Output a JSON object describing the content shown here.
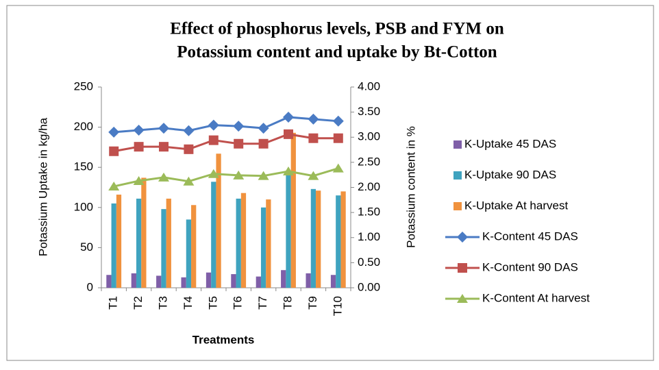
{
  "chart_data": {
    "type": "bar-line",
    "title": [
      "Effect of phosphorus levels, PSB and FYM on",
      "Potassium content and uptake by Bt-Cotton"
    ],
    "xlabel": "Treatments",
    "ylabel": "Potassium Uptake in kg/ha",
    "y2label": "Potassium content in %",
    "categories": [
      "T1",
      "T2",
      "T3",
      "T4",
      "T5",
      "T6",
      "T7",
      "T8",
      "T9",
      "T10"
    ],
    "ylim": [
      0,
      250
    ],
    "yticks": [
      0,
      50,
      100,
      150,
      200,
      250
    ],
    "y2lim": [
      0,
      4
    ],
    "y2ticks": [
      {
        "value": 0,
        "label": "0.00"
      },
      {
        "value": 0.5,
        "label": "0.50"
      },
      {
        "value": 1,
        "label": "1.00"
      },
      {
        "value": 1.5,
        "label": "1.50"
      },
      {
        "value": 2,
        "label": "2.00"
      },
      {
        "value": 2.5,
        "label": "2.50"
      },
      {
        "value": 3,
        "label": "3.00"
      },
      {
        "value": 3.5,
        "label": "3.50"
      },
      {
        "value": 4,
        "label": "4.00"
      }
    ],
    "grid": false,
    "legend": "right",
    "series": [
      {
        "name": "K-Uptake 45 DAS",
        "type": "bar",
        "color": "#7f5fa8",
        "values": [
          16,
          18,
          15,
          13,
          19,
          17,
          14,
          22,
          18,
          16
        ]
      },
      {
        "name": "K-Uptake 90 DAS",
        "type": "bar",
        "color": "#3fa3bf",
        "values": [
          105,
          111,
          98,
          85,
          132,
          111,
          100,
          142,
          123,
          115
        ]
      },
      {
        "name": "K-Uptake At harvest",
        "type": "bar",
        "color": "#f0923e",
        "values": [
          116,
          137,
          111,
          103,
          167,
          118,
          110,
          193,
          121,
          120
        ]
      },
      {
        "name": "K-Content 45 DAS",
        "type": "line",
        "axis": "y2",
        "marker": "diamond",
        "color": "#4a7bc4",
        "values": [
          3.1,
          3.14,
          3.18,
          3.13,
          3.24,
          3.22,
          3.18,
          3.4,
          3.36,
          3.32
        ]
      },
      {
        "name": "K-Content 90 DAS",
        "type": "line",
        "axis": "y2",
        "marker": "square",
        "color": "#c0504d",
        "values": [
          2.72,
          2.81,
          2.81,
          2.76,
          2.94,
          2.87,
          2.87,
          3.06,
          2.98,
          2.98
        ]
      },
      {
        "name": "K-Content At harvest",
        "type": "line",
        "axis": "y2",
        "marker": "triangle",
        "color": "#9bbb59",
        "values": [
          2.02,
          2.13,
          2.2,
          2.12,
          2.27,
          2.24,
          2.23,
          2.32,
          2.23,
          2.38
        ]
      }
    ]
  }
}
